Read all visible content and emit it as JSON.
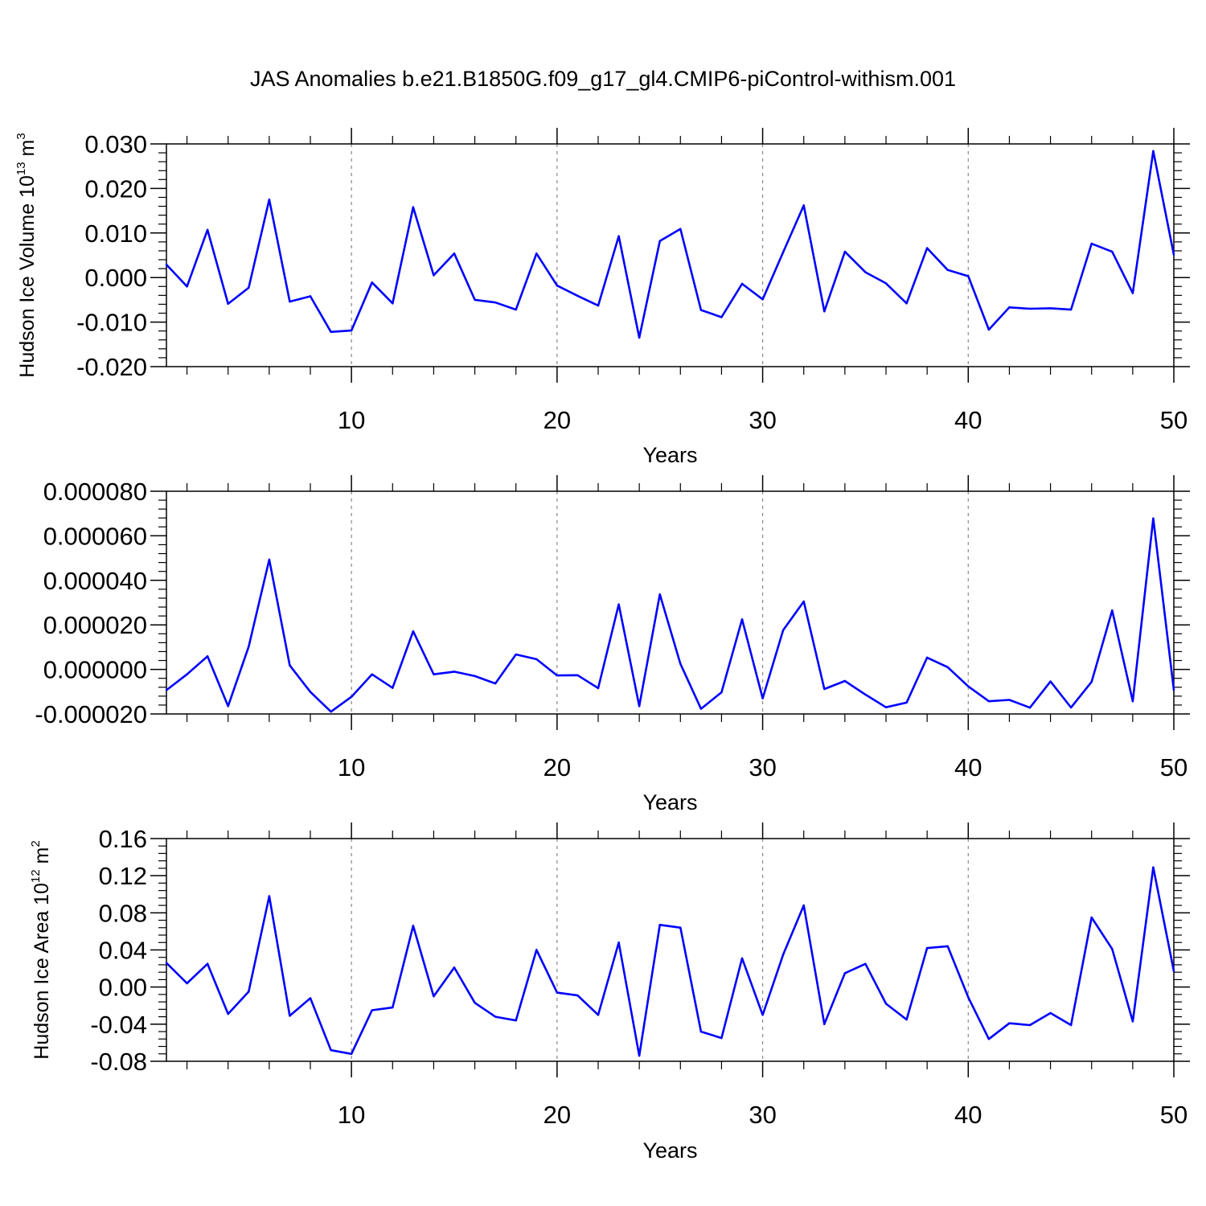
{
  "title": "JAS Anomalies b.e21.B1850G.f09_g17_gl4.CMIP6-piControl-withism.001",
  "colors": {
    "series": "#0000ff",
    "axis": "#000000",
    "grid": "#888888"
  },
  "chart_data": [
    {
      "type": "line",
      "name": "volume",
      "ylabel": "Hudson Ice Volume",
      "ylabel_unit": {
        "base": "10",
        "exp1": "13",
        "mid": " m",
        "exp2": "3"
      },
      "xlabel": "Years",
      "xlim": [
        1,
        50
      ],
      "ylim": [
        -0.02,
        0.03
      ],
      "xticks": [
        10,
        20,
        30,
        40,
        50
      ],
      "xtick_labels": [
        "10",
        "20",
        "30",
        "40",
        "50"
      ],
      "yticks": [
        -0.02,
        -0.01,
        0.0,
        0.01,
        0.02,
        0.03
      ],
      "ytick_labels": [
        "-0.020",
        "-0.010",
        "0.000",
        "0.010",
        "0.020",
        "0.030"
      ],
      "x": [
        1,
        2,
        3,
        4,
        5,
        6,
        7,
        8,
        9,
        10,
        11,
        12,
        13,
        14,
        15,
        16,
        17,
        18,
        19,
        20,
        21,
        22,
        23,
        24,
        25,
        26,
        27,
        28,
        29,
        30,
        31,
        32,
        33,
        34,
        35,
        36,
        37,
        38,
        39,
        40,
        41,
        42,
        43,
        44,
        45,
        46,
        47,
        48,
        49,
        50
      ],
      "y": [
        0.0029,
        -0.002,
        0.0107,
        -0.0059,
        -0.0023,
        0.0175,
        -0.0054,
        -0.0042,
        -0.0122,
        -0.0119,
        -0.0011,
        -0.0058,
        0.0158,
        0.0005,
        0.0054,
        -0.005,
        -0.0056,
        -0.0072,
        0.0054,
        -0.0018,
        -0.0041,
        -0.0063,
        0.0093,
        -0.0135,
        0.0082,
        0.0109,
        -0.0073,
        -0.0089,
        -0.0014,
        -0.0049,
        0.0057,
        0.0162,
        -0.0076,
        0.0058,
        0.0012,
        -0.0013,
        -0.0058,
        0.0066,
        0.0017,
        0.0003,
        -0.0117,
        -0.0067,
        -0.007,
        -0.0069,
        -0.0072,
        0.0076,
        0.0058,
        -0.0035,
        0.0284,
        0.0051
      ]
    },
    {
      "type": "line",
      "name": "thickness",
      "ylabel": "",
      "ylabel_unit": null,
      "xlabel": "Years",
      "xlim": [
        1,
        50
      ],
      "ylim": [
        -2e-05,
        8e-05
      ],
      "xticks": [
        10,
        20,
        30,
        40,
        50
      ],
      "xtick_labels": [
        "10",
        "20",
        "30",
        "40",
        "50"
      ],
      "yticks": [
        -2e-05,
        0.0,
        2e-05,
        4e-05,
        6e-05,
        8e-05
      ],
      "ytick_labels": [
        "-0.000020",
        "0.000000",
        "0.000020",
        "0.000040",
        "0.000060",
        "0.000080"
      ],
      "x": [
        1,
        2,
        3,
        4,
        5,
        6,
        7,
        8,
        9,
        10,
        11,
        12,
        13,
        14,
        15,
        16,
        17,
        18,
        19,
        20,
        21,
        22,
        23,
        24,
        25,
        26,
        27,
        28,
        29,
        30,
        31,
        32,
        33,
        34,
        35,
        36,
        37,
        38,
        39,
        40,
        41,
        42,
        43,
        44,
        45,
        46,
        47,
        48,
        49,
        50
      ],
      "y": [
        -9.3e-06,
        -2.2e-06,
        5.9e-06,
        -1.65e-05,
        1.02e-05,
        4.93e-05,
        1.8e-06,
        -1.01e-05,
        -1.9e-05,
        -1.23e-05,
        -2.2e-06,
        -8.3e-06,
        1.71e-05,
        -2.2e-06,
        -1e-06,
        -3e-06,
        -6.3e-06,
        6.7e-06,
        4.6e-06,
        -2.7e-06,
        -2.6e-06,
        -8.4e-06,
        2.92e-05,
        -1.65e-05,
        3.37e-05,
        2.5e-06,
        -1.77e-05,
        -1.03e-05,
        2.25e-05,
        -1.3e-05,
        1.76e-05,
        3.05e-05,
        -8.8e-06,
        -5.2e-06,
        -1.13e-05,
        -1.7e-05,
        -1.49e-05,
        5.3e-06,
        1e-06,
        -7.6e-06,
        -1.43e-05,
        -1.37e-05,
        -1.72e-05,
        -5.4e-06,
        -1.71e-05,
        -5.6e-06,
        2.65e-05,
        -1.43e-05,
        6.78e-05,
        -9.3e-06
      ]
    },
    {
      "type": "line",
      "name": "area",
      "ylabel": "Hudson Ice Area",
      "ylabel_unit": {
        "base": "10",
        "exp1": "12",
        "mid": " m",
        "exp2": "2"
      },
      "xlabel": "Years",
      "xlim": [
        1,
        50
      ],
      "ylim": [
        -0.08,
        0.16
      ],
      "xticks": [
        10,
        20,
        30,
        40,
        50
      ],
      "xtick_labels": [
        "10",
        "20",
        "30",
        "40",
        "50"
      ],
      "yticks": [
        -0.08,
        -0.04,
        0.0,
        0.04,
        0.08,
        0.12,
        0.16
      ],
      "ytick_labels": [
        "-0.08",
        "-0.04",
        "0.00",
        "0.04",
        "0.08",
        "0.12",
        "0.16"
      ],
      "x": [
        1,
        2,
        3,
        4,
        5,
        6,
        7,
        8,
        9,
        10,
        11,
        12,
        13,
        14,
        15,
        16,
        17,
        18,
        19,
        20,
        21,
        22,
        23,
        24,
        25,
        26,
        27,
        28,
        29,
        30,
        31,
        32,
        33,
        34,
        35,
        36,
        37,
        38,
        39,
        40,
        41,
        42,
        43,
        44,
        45,
        46,
        47,
        48,
        49,
        50
      ],
      "y": [
        0.026,
        0.004,
        0.025,
        -0.029,
        -0.005,
        0.098,
        -0.031,
        -0.012,
        -0.068,
        -0.072,
        -0.025,
        -0.022,
        0.066,
        -0.01,
        0.021,
        -0.017,
        -0.032,
        -0.036,
        0.04,
        -0.006,
        -0.009,
        -0.03,
        0.048,
        -0.074,
        0.067,
        0.064,
        -0.048,
        -0.055,
        0.031,
        -0.03,
        0.035,
        0.088,
        -0.04,
        0.015,
        0.025,
        -0.018,
        -0.035,
        0.042,
        0.044,
        -0.011,
        -0.056,
        -0.039,
        -0.041,
        -0.028,
        -0.041,
        0.075,
        0.041,
        -0.037,
        0.129,
        0.017
      ]
    }
  ]
}
